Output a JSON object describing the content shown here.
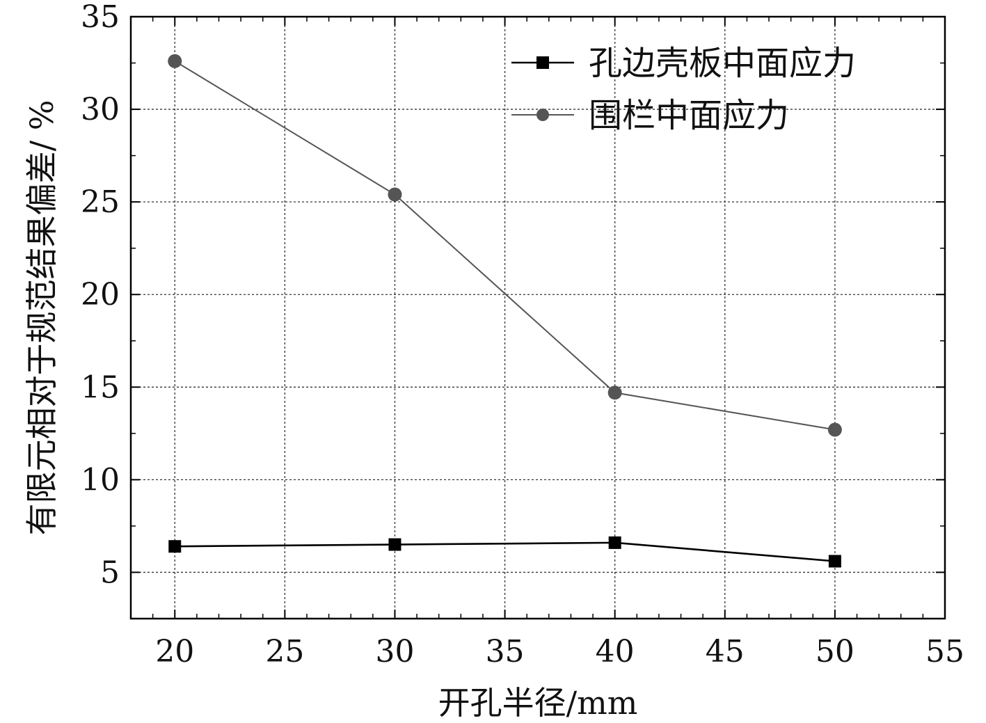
{
  "chart_data": {
    "type": "line",
    "title": "",
    "xlabel": "开孔半径/mm",
    "ylabel": "有限元相对于规范结果偏差/ %",
    "xlim": [
      18,
      55
    ],
    "ylim": [
      2.5,
      35
    ],
    "xticks": [
      20,
      25,
      30,
      35,
      40,
      45,
      50,
      55
    ],
    "yticks": [
      5,
      10,
      15,
      20,
      25,
      30,
      35
    ],
    "xtick_labels": [
      "20",
      "25",
      "30",
      "35",
      "40",
      "45",
      "50",
      "55"
    ],
    "ytick_labels": [
      "5",
      "10",
      "15",
      "20",
      "25",
      "30",
      "35"
    ],
    "grid": true,
    "legend_position": "top-right",
    "x": [
      20,
      30,
      40,
      50
    ],
    "series": [
      {
        "name": "孔边壳板中面应力",
        "values": [
          6.4,
          6.5,
          6.6,
          5.6
        ],
        "color": "#000000",
        "marker": "square"
      },
      {
        "name": "围栏中面应力",
        "values": [
          32.6,
          25.4,
          14.7,
          12.7
        ],
        "color": "#555555",
        "marker": "circle"
      }
    ]
  }
}
